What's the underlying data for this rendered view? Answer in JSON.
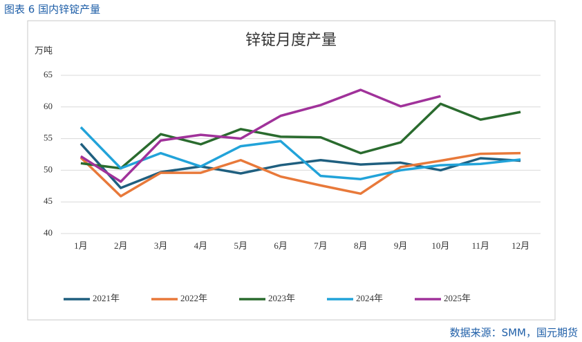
{
  "header": "图表 6 国内锌锭产量",
  "source": "数据来源：SMM，国元期货",
  "chart_data": {
    "type": "line",
    "title": "锌锭月度产量",
    "y_label": "万吨",
    "categories": [
      "1月",
      "2月",
      "3月",
      "4月",
      "5月",
      "6月",
      "7月",
      "8月",
      "9月",
      "10月",
      "11月",
      "12月"
    ],
    "series": [
      {
        "name": "2021年",
        "color": "#1f5f7f",
        "values": [
          54.2,
          47.2,
          49.7,
          50.6,
          49.5,
          50.8,
          51.6,
          50.9,
          51.2,
          50.0,
          51.9,
          51.5
        ]
      },
      {
        "name": "2022年",
        "color": "#e8793a",
        "values": [
          52.0,
          45.9,
          49.6,
          49.6,
          51.6,
          49.0,
          47.6,
          46.3,
          50.5,
          51.5,
          52.6,
          52.7
        ]
      },
      {
        "name": "2023年",
        "color": "#2a6b2e",
        "values": [
          51.1,
          50.3,
          55.7,
          54.1,
          56.5,
          55.3,
          55.2,
          52.7,
          54.4,
          60.5,
          58.0,
          59.2
        ]
      },
      {
        "name": "2024年",
        "color": "#22a3d9",
        "values": [
          56.8,
          50.3,
          52.7,
          50.6,
          53.8,
          54.6,
          49.1,
          48.6,
          50.0,
          50.8,
          51.0,
          51.7
        ]
      },
      {
        "name": "2025年",
        "color": "#a0329a",
        "values": [
          52.2,
          48.2,
          54.7,
          55.6,
          55.0,
          58.6,
          60.3,
          62.7,
          60.1,
          61.7,
          null,
          null
        ]
      }
    ],
    "ylim": [
      40,
      65
    ],
    "yticks": [
      40,
      45,
      50,
      55,
      60,
      65
    ],
    "grid": true,
    "legend": "bottom"
  }
}
